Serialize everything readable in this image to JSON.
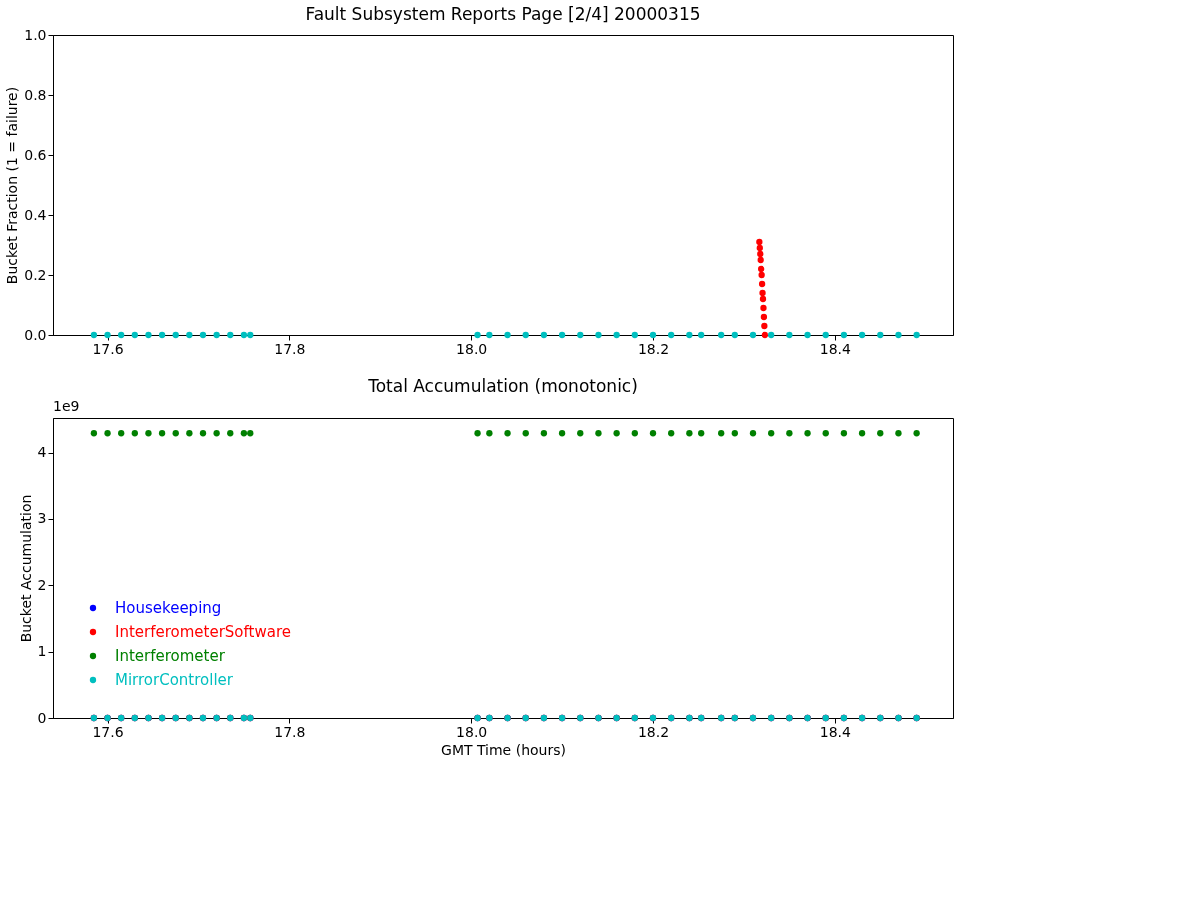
{
  "chart_data": [
    {
      "type": "scatter",
      "title": "Fault Subsystem Reports Page [2/4] 20000315",
      "ylabel": "Bucket Fraction (1 = failure)",
      "marker": "circle",
      "xlim": [
        17.54,
        18.53
      ],
      "xticks": [
        17.6,
        17.8,
        {
          "value": 18,
          "label": "18.0"
        },
        18.2,
        18.4
      ],
      "ylim": [
        0,
        1
      ],
      "yticks": [
        {
          "value": 0,
          "label": "0.0"
        },
        0.2,
        0.4,
        0.6,
        0.8,
        {
          "value": 1,
          "label": "1.0"
        }
      ],
      "x": [
        17.585,
        17.6,
        17.615,
        17.63,
        17.645,
        17.66,
        17.675,
        17.69,
        17.705,
        17.72,
        17.735,
        17.75,
        17.757,
        18.007,
        18.02,
        18.04,
        18.06,
        18.08,
        18.1,
        18.12,
        18.14,
        18.16,
        18.18,
        18.2,
        18.22,
        18.24,
        18.253,
        18.275,
        18.29,
        18.31,
        18.33,
        18.35,
        18.37,
        18.39,
        18.41,
        18.43,
        18.45,
        18.47,
        18.49
      ],
      "series": [
        {
          "color": "#ff0000",
          "x": [
            18.317,
            18.3175,
            18.318,
            18.3185,
            18.319,
            18.3195,
            18.32,
            18.3205,
            18.321,
            18.3215,
            18.322,
            18.3225,
            18.323
          ],
          "values": [
            0.31,
            0.29,
            0.27,
            0.25,
            0.22,
            0.2,
            0.17,
            0.14,
            0.12,
            0.09,
            0.06,
            0.03,
            0.0
          ]
        },
        {
          "color": "#00bfbf",
          "values": [
            0,
            0,
            0,
            0,
            0,
            0,
            0,
            0,
            0,
            0,
            0,
            0,
            0,
            0,
            0,
            0,
            0,
            0,
            0,
            0,
            0,
            0,
            0,
            0,
            0,
            0,
            0,
            0,
            0,
            0,
            0,
            0,
            0,
            0,
            0,
            0,
            0,
            0,
            0
          ]
        }
      ]
    },
    {
      "type": "scatter",
      "title": "Total Accumulation (monotonic)",
      "xlabel": "GMT Time (hours)",
      "ylabel": "Bucket Accumulation",
      "marker": "circle",
      "legend": "bottom left",
      "annotations": [
        "1e9"
      ],
      "xlim": [
        17.54,
        18.53
      ],
      "xticks": [
        17.6,
        17.8,
        {
          "value": 18,
          "label": "18.0"
        },
        18.2,
        18.4
      ],
      "ylim": [
        0,
        4.52
      ],
      "yticks": [
        0,
        1,
        2,
        3,
        4
      ],
      "x": [
        17.585,
        17.6,
        17.615,
        17.63,
        17.645,
        17.66,
        17.675,
        17.69,
        17.705,
        17.72,
        17.735,
        17.75,
        17.757,
        18.007,
        18.02,
        18.04,
        18.06,
        18.08,
        18.1,
        18.12,
        18.14,
        18.16,
        18.18,
        18.2,
        18.22,
        18.24,
        18.253,
        18.275,
        18.29,
        18.31,
        18.33,
        18.35,
        18.37,
        18.39,
        18.41,
        18.43,
        18.45,
        18.47,
        18.49
      ],
      "series": [
        {
          "name": "Housekeeping",
          "color": "#0000ff",
          "values": [
            0,
            0,
            0,
            0,
            0,
            0,
            0,
            0,
            0,
            0,
            0,
            0,
            0,
            0,
            0,
            0,
            0,
            0,
            0,
            0,
            0,
            0,
            0,
            0,
            0,
            0,
            0,
            0,
            0,
            0,
            0,
            0,
            0,
            0,
            0,
            0,
            0,
            0,
            0
          ]
        },
        {
          "name": "InterferometerSoftware",
          "color": "#ff0000",
          "values": [
            0,
            0,
            0,
            0,
            0,
            0,
            0,
            0,
            0,
            0,
            0,
            0,
            0,
            0,
            0,
            0,
            0,
            0,
            0,
            0,
            0,
            0,
            0,
            0,
            0,
            0,
            0,
            0,
            0,
            0,
            0,
            0,
            0,
            0,
            0,
            0,
            0,
            0,
            0
          ]
        },
        {
          "name": "Interferometer",
          "color": "#008000",
          "values": [
            4.29,
            4.29,
            4.29,
            4.29,
            4.29,
            4.29,
            4.29,
            4.29,
            4.29,
            4.29,
            4.29,
            4.29,
            4.29,
            4.29,
            4.29,
            4.29,
            4.29,
            4.29,
            4.29,
            4.29,
            4.29,
            4.29,
            4.29,
            4.29,
            4.29,
            4.29,
            4.29,
            4.29,
            4.29,
            4.29,
            4.29,
            4.29,
            4.29,
            4.29,
            4.29,
            4.29,
            4.29,
            4.29,
            4.29
          ]
        },
        {
          "name": "MirrorController",
          "color": "#00bfbf",
          "values": [
            0,
            0,
            0,
            0,
            0,
            0,
            0,
            0,
            0,
            0,
            0,
            0,
            0,
            0,
            0,
            0,
            0,
            0,
            0,
            0,
            0,
            0,
            0,
            0,
            0,
            0,
            0,
            0,
            0,
            0,
            0,
            0,
            0,
            0,
            0,
            0,
            0,
            0,
            0
          ]
        }
      ]
    }
  ]
}
